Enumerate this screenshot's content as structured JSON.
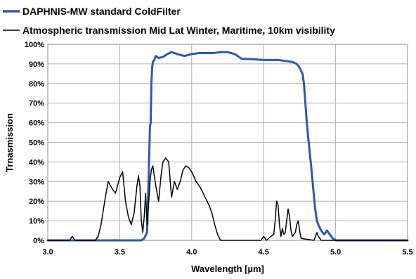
{
  "chart_data": {
    "type": "line",
    "title": "",
    "xlabel": "Wavelength [µm]",
    "ylabel": "Trnasmission",
    "xlim": [
      3.0,
      5.5
    ],
    "ylim": [
      0,
      100
    ],
    "x_ticks": [
      3.0,
      3.5,
      4.0,
      4.5,
      5.0,
      5.5
    ],
    "x_tick_labels": [
      "3.0",
      "3.5",
      "4.0",
      "4.5",
      "5.0",
      "5.5"
    ],
    "y_ticks": [
      0,
      10,
      20,
      30,
      40,
      50,
      60,
      70,
      80,
      90,
      100
    ],
    "y_tick_labels": [
      "0%",
      "10%",
      "20%",
      "30%",
      "40%",
      "50%",
      "60%",
      "70%",
      "80%",
      "90%",
      "100%"
    ],
    "grid": true,
    "legend_position": "top",
    "series": [
      {
        "name": "DAPHNIS-MW standard ColdFilter",
        "color": "#2f5aa6",
        "points": [
          [
            3.0,
            0
          ],
          [
            3.55,
            0
          ],
          [
            3.6,
            0
          ],
          [
            3.65,
            0
          ],
          [
            3.67,
            1
          ],
          [
            3.69,
            4
          ],
          [
            3.7,
            30
          ],
          [
            3.71,
            58
          ],
          [
            3.715,
            60
          ],
          [
            3.72,
            80
          ],
          [
            3.725,
            88
          ],
          [
            3.73,
            91
          ],
          [
            3.74,
            92
          ],
          [
            3.75,
            94
          ],
          [
            3.77,
            93
          ],
          [
            3.8,
            93.5
          ],
          [
            3.83,
            95
          ],
          [
            3.86,
            96
          ],
          [
            3.9,
            95
          ],
          [
            3.95,
            94
          ],
          [
            4.0,
            95
          ],
          [
            4.05,
            95.5
          ],
          [
            4.1,
            95.5
          ],
          [
            4.15,
            95.5
          ],
          [
            4.2,
            96
          ],
          [
            4.25,
            96
          ],
          [
            4.3,
            95
          ],
          [
            4.35,
            92.5
          ],
          [
            4.4,
            92.5
          ],
          [
            4.5,
            92
          ],
          [
            4.6,
            92
          ],
          [
            4.65,
            91.5
          ],
          [
            4.7,
            91
          ],
          [
            4.73,
            90
          ],
          [
            4.75,
            88
          ],
          [
            4.77,
            85
          ],
          [
            4.78,
            80
          ],
          [
            4.79,
            70
          ],
          [
            4.8,
            60
          ],
          [
            4.81,
            52
          ],
          [
            4.82,
            45
          ],
          [
            4.83,
            38
          ],
          [
            4.84,
            30
          ],
          [
            4.85,
            22
          ],
          [
            4.86,
            15
          ],
          [
            4.87,
            10
          ],
          [
            4.88,
            8
          ],
          [
            4.9,
            5
          ],
          [
            4.92,
            3
          ],
          [
            4.94,
            5
          ],
          [
            4.96,
            3
          ],
          [
            4.98,
            1
          ],
          [
            5.0,
            0
          ],
          [
            5.5,
            0
          ]
        ]
      },
      {
        "name": "Atmospheric transmission Mid Lat Winter, Maritime, 10km visibility",
        "color": "#000000",
        "points": [
          [
            3.0,
            0
          ],
          [
            3.15,
            0
          ],
          [
            3.17,
            2
          ],
          [
            3.19,
            0
          ],
          [
            3.33,
            0
          ],
          [
            3.35,
            2
          ],
          [
            3.37,
            8
          ],
          [
            3.4,
            22
          ],
          [
            3.42,
            30
          ],
          [
            3.45,
            26
          ],
          [
            3.47,
            24
          ],
          [
            3.5,
            32
          ],
          [
            3.52,
            35
          ],
          [
            3.54,
            20
          ],
          [
            3.56,
            12
          ],
          [
            3.58,
            8
          ],
          [
            3.6,
            14
          ],
          [
            3.62,
            28
          ],
          [
            3.63,
            33
          ],
          [
            3.64,
            28
          ],
          [
            3.65,
            10
          ],
          [
            3.66,
            4
          ],
          [
            3.67,
            12
          ],
          [
            3.68,
            24
          ],
          [
            3.69,
            8
          ],
          [
            3.7,
            18
          ],
          [
            3.71,
            30
          ],
          [
            3.72,
            36
          ],
          [
            3.73,
            38
          ],
          [
            3.75,
            28
          ],
          [
            3.77,
            20
          ],
          [
            3.79,
            35
          ],
          [
            3.8,
            40
          ],
          [
            3.82,
            42
          ],
          [
            3.84,
            40
          ],
          [
            3.86,
            22
          ],
          [
            3.88,
            30
          ],
          [
            3.9,
            26
          ],
          [
            3.92,
            30
          ],
          [
            3.94,
            36
          ],
          [
            3.96,
            38
          ],
          [
            3.98,
            37
          ],
          [
            4.0,
            35
          ],
          [
            4.03,
            30
          ],
          [
            4.06,
            27
          ],
          [
            4.08,
            24
          ],
          [
            4.1,
            21
          ],
          [
            4.12,
            18
          ],
          [
            4.14,
            14
          ],
          [
            4.16,
            8
          ],
          [
            4.18,
            3
          ],
          [
            4.2,
            0
          ],
          [
            4.48,
            0
          ],
          [
            4.5,
            2
          ],
          [
            4.52,
            0
          ],
          [
            4.55,
            2
          ],
          [
            4.57,
            3
          ],
          [
            4.58,
            10
          ],
          [
            4.59,
            20
          ],
          [
            4.6,
            18
          ],
          [
            4.61,
            8
          ],
          [
            4.62,
            2
          ],
          [
            4.63,
            6
          ],
          [
            4.64,
            3
          ],
          [
            4.65,
            4
          ],
          [
            4.66,
            10
          ],
          [
            4.67,
            16
          ],
          [
            4.68,
            12
          ],
          [
            4.69,
            5
          ],
          [
            4.7,
            2
          ],
          [
            4.72,
            4
          ],
          [
            4.73,
            8
          ],
          [
            4.74,
            10
          ],
          [
            4.75,
            5
          ],
          [
            4.76,
            1
          ],
          [
            4.85,
            0
          ],
          [
            4.87,
            4
          ],
          [
            4.88,
            2
          ],
          [
            4.9,
            0
          ],
          [
            5.5,
            0
          ]
        ]
      }
    ]
  }
}
